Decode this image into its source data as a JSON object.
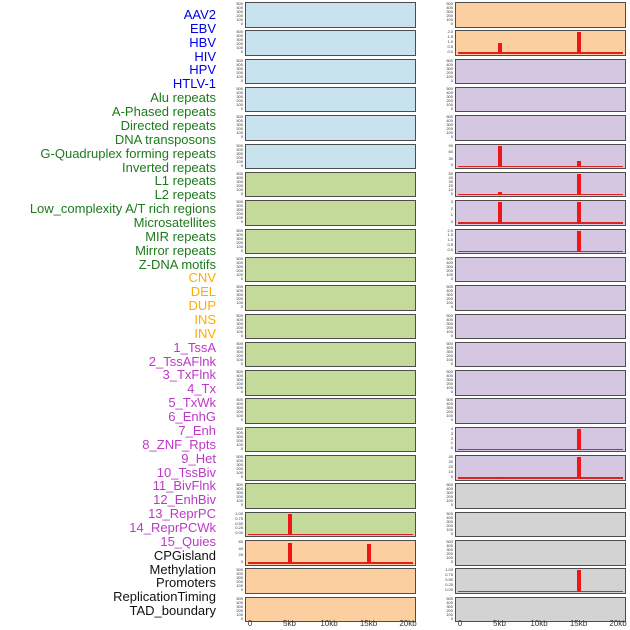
{
  "chart_data": {
    "type": "line",
    "title": "",
    "x_axis": {
      "tick_labels": [
        "0",
        "5kb",
        "10kb",
        "15kb",
        "20kb"
      ],
      "tick_kb": [
        0,
        5,
        10,
        15,
        20
      ],
      "domain_kb": [
        0,
        20
      ]
    },
    "legend_groups": {
      "virus": {
        "label_color": "#0000e6",
        "panel_color": "#c9e3ee"
      },
      "repeat": {
        "label_color": "#1d7a1d",
        "panel_color": "#c3da9a"
      },
      "sv": {
        "label_color": "#ffac00",
        "panel_color": "#fccfa0"
      },
      "chromatin_state": {
        "label_color": "#bd38c8",
        "panel_color": "#d5c6e2"
      },
      "other": {
        "label_color": "#111111",
        "panel_color": "#d3d3d3"
      }
    },
    "spike_color": "#ee1616",
    "facets": [
      {
        "label": "AAV2",
        "group": "virus",
        "col": 1,
        "row": 1,
        "yticks": [
          "500",
          "400",
          "300",
          "200",
          "100",
          "0"
        ],
        "peaks": []
      },
      {
        "label": "EBV",
        "group": "virus",
        "col": 1,
        "row": 2,
        "yticks": [
          "500",
          "400",
          "300",
          "200",
          "100",
          "0"
        ],
        "peaks": []
      },
      {
        "label": "HBV",
        "group": "virus",
        "col": 1,
        "row": 3,
        "yticks": [
          "500",
          "400",
          "300",
          "200",
          "100",
          "0"
        ],
        "peaks": []
      },
      {
        "label": "HIV",
        "group": "virus",
        "col": 1,
        "row": 4,
        "yticks": [
          "500",
          "400",
          "300",
          "200",
          "100",
          "0"
        ],
        "peaks": []
      },
      {
        "label": "HPV",
        "group": "virus",
        "col": 1,
        "row": 5,
        "yticks": [
          "500",
          "400",
          "300",
          "200",
          "100",
          "0"
        ],
        "peaks": []
      },
      {
        "label": "HTLV-1",
        "group": "virus",
        "col": 1,
        "row": 6,
        "yticks": [
          "500",
          "400",
          "300",
          "200",
          "100",
          "0"
        ],
        "peaks": []
      },
      {
        "label": "Alu repeats",
        "group": "repeat",
        "col": 1,
        "row": 7,
        "yticks": [
          "500",
          "400",
          "300",
          "200",
          "100",
          "0"
        ],
        "peaks": []
      },
      {
        "label": "A-Phased repeats",
        "group": "repeat",
        "col": 1,
        "row": 8,
        "yticks": [
          "500",
          "400",
          "300",
          "200",
          "100",
          "0"
        ],
        "peaks": []
      },
      {
        "label": "Directed repeats",
        "group": "repeat",
        "col": 1,
        "row": 9,
        "yticks": [
          "500",
          "400",
          "300",
          "200",
          "100",
          "0"
        ],
        "peaks": []
      },
      {
        "label": "DNA transposons",
        "group": "repeat",
        "col": 1,
        "row": 10,
        "yticks": [
          "500",
          "400",
          "300",
          "200",
          "100",
          "0"
        ],
        "peaks": []
      },
      {
        "label": "G-Quadruplex forming repeats",
        "group": "repeat",
        "col": 1,
        "row": 11,
        "yticks": [
          "500",
          "400",
          "300",
          "200",
          "100",
          "0"
        ],
        "peaks": []
      },
      {
        "label": "Inverted repeats",
        "group": "repeat",
        "col": 1,
        "row": 12,
        "yticks": [
          "500",
          "400",
          "300",
          "200",
          "100",
          "0"
        ],
        "peaks": []
      },
      {
        "label": "L1 repeats",
        "group": "repeat",
        "col": 1,
        "row": 13,
        "yticks": [
          "500",
          "400",
          "300",
          "200",
          "100",
          "0"
        ],
        "peaks": []
      },
      {
        "label": "L2 repeats",
        "group": "repeat",
        "col": 1,
        "row": 14,
        "yticks": [
          "500",
          "400",
          "300",
          "200",
          "100",
          "0"
        ],
        "peaks": []
      },
      {
        "label": "Low_complexity A/T rich regions",
        "group": "repeat",
        "col": 1,
        "row": 15,
        "yticks": [
          "500",
          "400",
          "300",
          "200",
          "100",
          "0"
        ],
        "peaks": []
      },
      {
        "label": "Microsatellites",
        "group": "repeat",
        "col": 1,
        "row": 16,
        "yticks": [
          "500",
          "400",
          "300",
          "200",
          "100",
          "0"
        ],
        "peaks": []
      },
      {
        "label": "MIR repeats",
        "group": "repeat",
        "col": 1,
        "row": 17,
        "yticks": [
          "500",
          "400",
          "300",
          "200",
          "100",
          "0"
        ],
        "peaks": []
      },
      {
        "label": "Mirror repeats",
        "group": "repeat",
        "col": 1,
        "row": 18,
        "yticks": [
          "500",
          "400",
          "300",
          "200",
          "100",
          "0"
        ],
        "peaks": []
      },
      {
        "label": "Z-DNA motifs",
        "group": "repeat",
        "col": 1,
        "row": 19,
        "yticks": [
          "1.00",
          "0.75",
          "0.50",
          "0.25",
          "0.00"
        ],
        "peaks": [
          {
            "x_kb": 5,
            "y_value": 1.0,
            "frac": 0.97
          }
        ]
      },
      {
        "label": "CNV",
        "group": "sv",
        "col": 1,
        "row": 20,
        "yticks": [
          "60",
          "40",
          "20",
          "0"
        ],
        "peaks": [
          {
            "x_kb": 5,
            "y_value": 62,
            "frac": 0.97
          },
          {
            "x_kb": 15,
            "y_value": 58,
            "frac": 0.93
          }
        ]
      },
      {
        "label": "DEL",
        "group": "sv",
        "col": 1,
        "row": 21,
        "yticks": [
          "500",
          "400",
          "300",
          "200",
          "100",
          "0"
        ],
        "peaks": []
      },
      {
        "label": "DUP",
        "group": "sv",
        "col": 1,
        "row": 22,
        "yticks": [
          "500",
          "400",
          "300",
          "200",
          "100",
          "0"
        ],
        "peaks": []
      },
      {
        "label": "INS",
        "group": "sv",
        "col": 2,
        "row": 1,
        "yticks": [
          "500",
          "400",
          "300",
          "200",
          "100",
          "0"
        ],
        "peaks": []
      },
      {
        "label": "INV",
        "group": "sv",
        "col": 2,
        "row": 2,
        "yticks": [
          "2.0",
          "1.5",
          "1.0",
          "0.5",
          "0.0"
        ],
        "peaks": [
          {
            "x_kb": 5,
            "y_value": 1.0,
            "frac": 0.5
          },
          {
            "x_kb": 15,
            "y_value": 2.1,
            "frac": 1.0
          }
        ]
      },
      {
        "label": "1_TssA",
        "group": "chromatin_state",
        "col": 2,
        "row": 3,
        "yticks": [
          "500",
          "400",
          "300",
          "200",
          "100",
          "0"
        ],
        "peaks": []
      },
      {
        "label": "2_TssAFlnk",
        "group": "chromatin_state",
        "col": 2,
        "row": 4,
        "yticks": [
          "500",
          "400",
          "300",
          "200",
          "100",
          "0"
        ],
        "peaks": []
      },
      {
        "label": "3_TxFlnk",
        "group": "chromatin_state",
        "col": 2,
        "row": 5,
        "yticks": [
          "500",
          "400",
          "300",
          "200",
          "100",
          "0"
        ],
        "peaks": []
      },
      {
        "label": "4_Tx",
        "group": "chromatin_state",
        "col": 2,
        "row": 6,
        "yticks": [
          "90",
          "60",
          "30",
          "0"
        ],
        "peaks": [
          {
            "x_kb": 5,
            "y_value": 95,
            "frac": 1.0
          },
          {
            "x_kb": 15,
            "y_value": 28,
            "frac": 0.3
          }
        ]
      },
      {
        "label": "5_TxWk",
        "group": "chromatin_state",
        "col": 2,
        "row": 7,
        "yticks": [
          "50",
          "40",
          "30",
          "20",
          "10",
          "0"
        ],
        "peaks": [
          {
            "x_kb": 5,
            "y_value": 9,
            "frac": 0.18
          },
          {
            "x_kb": 15,
            "y_value": 52,
            "frac": 1.0
          }
        ]
      },
      {
        "label": "6_EnhG",
        "group": "chromatin_state",
        "col": 2,
        "row": 8,
        "yticks": [
          "3",
          "2",
          "1",
          "0"
        ],
        "peaks": [
          {
            "x_kb": 5,
            "y_value": 3.2,
            "frac": 1.0
          },
          {
            "x_kb": 15,
            "y_value": 3.2,
            "frac": 1.0
          }
        ]
      },
      {
        "label": "7_Enh",
        "group": "chromatin_state",
        "col": 2,
        "row": 9,
        "yticks": [
          "2.0",
          "1.5",
          "1.0",
          "0.5",
          "0.0"
        ],
        "peaks": [
          {
            "x_kb": 15,
            "y_value": 2.1,
            "frac": 1.0
          }
        ]
      },
      {
        "label": "8_ZNF_Rpts",
        "group": "chromatin_state",
        "col": 2,
        "row": 10,
        "yticks": [
          "500",
          "400",
          "300",
          "200",
          "100",
          "0"
        ],
        "peaks": []
      },
      {
        "label": "9_Het",
        "group": "chromatin_state",
        "col": 2,
        "row": 11,
        "yticks": [
          "500",
          "400",
          "300",
          "200",
          "100",
          "0"
        ],
        "peaks": []
      },
      {
        "label": "10_TssBiv",
        "group": "chromatin_state",
        "col": 2,
        "row": 12,
        "yticks": [
          "500",
          "400",
          "300",
          "200",
          "100",
          "0"
        ],
        "peaks": []
      },
      {
        "label": "11_BivFlnk",
        "group": "chromatin_state",
        "col": 2,
        "row": 13,
        "yticks": [
          "500",
          "400",
          "300",
          "200",
          "100",
          "0"
        ],
        "peaks": []
      },
      {
        "label": "12_EnhBiv",
        "group": "chromatin_state",
        "col": 2,
        "row": 14,
        "yticks": [
          "500",
          "400",
          "300",
          "200",
          "100",
          "0"
        ],
        "peaks": []
      },
      {
        "label": "13_ReprPC",
        "group": "chromatin_state",
        "col": 2,
        "row": 15,
        "yticks": [
          "500",
          "400",
          "300",
          "200",
          "100",
          "0"
        ],
        "peaks": []
      },
      {
        "label": "14_ReprPCWk",
        "group": "chromatin_state",
        "col": 2,
        "row": 16,
        "yticks": [
          "4",
          "3",
          "2",
          "1",
          "0"
        ],
        "peaks": [
          {
            "x_kb": 15,
            "y_value": 4.2,
            "frac": 1.0
          }
        ]
      },
      {
        "label": "15_Quies",
        "group": "chromatin_state",
        "col": 2,
        "row": 17,
        "yticks": [
          "40",
          "30",
          "20",
          "10",
          "0"
        ],
        "peaks": [
          {
            "x_kb": 5,
            "y_value": 3,
            "frac": 0.08
          },
          {
            "x_kb": 15,
            "y_value": 42,
            "frac": 1.0
          }
        ]
      },
      {
        "label": "CPGisland",
        "group": "other",
        "col": 2,
        "row": 18,
        "yticks": [
          "500",
          "400",
          "300",
          "200",
          "100",
          "0"
        ],
        "peaks": []
      },
      {
        "label": "Methylation",
        "group": "other",
        "col": 2,
        "row": 19,
        "yticks": [
          "500",
          "400",
          "300",
          "200",
          "100",
          "0"
        ],
        "peaks": []
      },
      {
        "label": "Promoters",
        "group": "other",
        "col": 2,
        "row": 20,
        "yticks": [
          "500",
          "400",
          "300",
          "200",
          "100",
          "0"
        ],
        "peaks": []
      },
      {
        "label": "ReplicationTiming",
        "group": "other",
        "col": 2,
        "row": 21,
        "yticks": [
          "1.00",
          "0.75",
          "0.50",
          "0.25",
          "0.00"
        ],
        "peaks": [
          {
            "x_kb": 15,
            "y_value": 1.0,
            "frac": 1.0
          }
        ]
      },
      {
        "label": "TAD_boundary",
        "group": "other",
        "col": 2,
        "row": 22,
        "yticks": [
          "500",
          "400",
          "300",
          "200",
          "100",
          "0"
        ],
        "peaks": []
      }
    ]
  }
}
